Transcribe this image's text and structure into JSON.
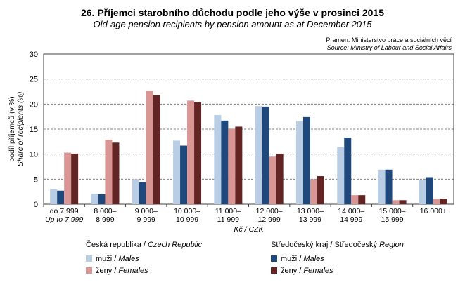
{
  "title": "26. Příjemci starobního důchodu podle jeho výše v prosinci 2015",
  "subtitle": "Old-age pension recipients by pension amount as at December 2015",
  "source_cz": "Pramen: Ministerstvo práce a sociálních věcí",
  "source_en": "Source: Ministry of Labour and Social Affairs",
  "legend": {
    "cr": "Česká republika / ",
    "cr_en": "Czech Republic",
    "kraj": "Středočeský kraj / Středočeský ",
    "kraj_en": "Region",
    "m": "muži / ",
    "m_en": "Males",
    "f": "ženy / ",
    "f_en": "Females"
  },
  "chart_data": {
    "type": "bar",
    "title": "26. Příjemci starobního důchodu podle jeho výše v prosinci 2015",
    "xlabel": "Kč / CZK",
    "ylabel": "podíl příjemců (v %)",
    "ylabel_en": "Share of recipients (%)",
    "ylim": [
      0,
      30
    ],
    "yticks": [
      0,
      5,
      10,
      15,
      20,
      25,
      30
    ],
    "categories": [
      [
        "do 7 999",
        "Up to 7 999"
      ],
      [
        "8 000–",
        "8 999"
      ],
      [
        "9 000–",
        "9 999"
      ],
      [
        "10 000–",
        "10 999"
      ],
      [
        "11 000–",
        "11 999"
      ],
      [
        "12 000–",
        "12 999"
      ],
      [
        "13 000–",
        "13 999"
      ],
      [
        "14 000–",
        "14 999"
      ],
      [
        "15 000–",
        "15 999"
      ],
      [
        "16 000+",
        ""
      ]
    ],
    "series": [
      {
        "name": "Česká republika – muži / Males",
        "color": "#b9cde4",
        "values": [
          3.0,
          2.1,
          5.0,
          12.7,
          17.8,
          19.6,
          16.6,
          11.4,
          6.9,
          4.9
        ]
      },
      {
        "name": "Středočeský kraj – muži / Males",
        "color": "#1f497d",
        "values": [
          2.7,
          2.0,
          4.4,
          11.7,
          16.7,
          19.5,
          17.4,
          13.3,
          6.9,
          5.4
        ]
      },
      {
        "name": "Česká republika – ženy / Females",
        "color": "#d99694",
        "values": [
          10.3,
          12.9,
          22.7,
          20.7,
          15.1,
          9.5,
          5.0,
          1.8,
          0.8,
          1.1
        ]
      },
      {
        "name": "Středočeský kraj – ženy / Females",
        "color": "#632523",
        "values": [
          10.1,
          12.3,
          21.8,
          20.4,
          15.5,
          10.1,
          5.6,
          1.8,
          0.8,
          1.1
        ]
      }
    ]
  }
}
